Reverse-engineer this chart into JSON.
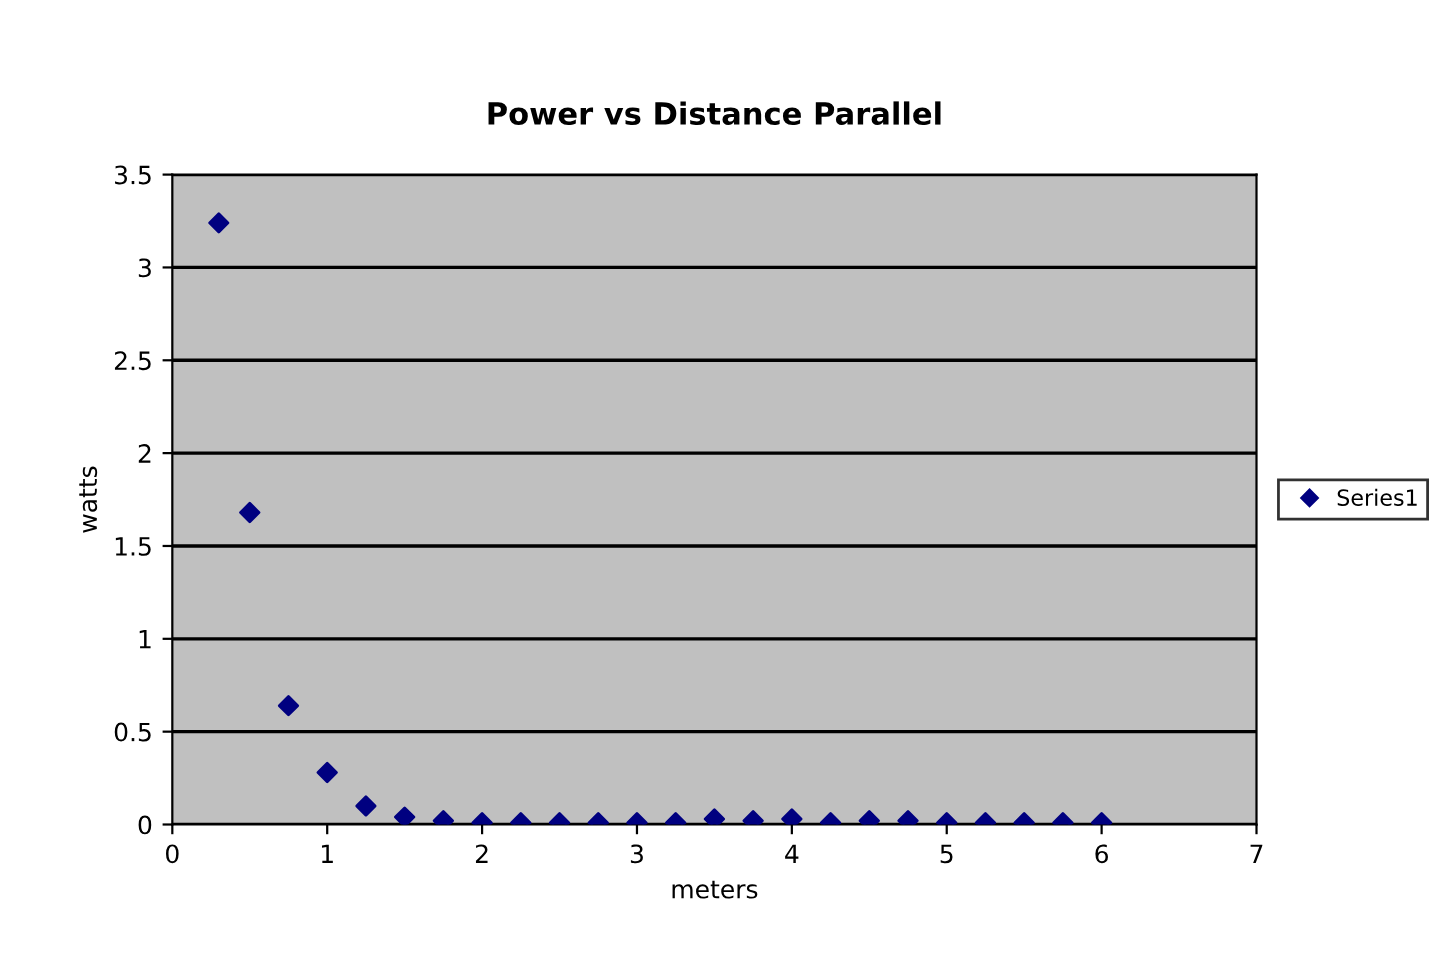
{
  "chart_data": {
    "type": "scatter",
    "title": "Power vs Distance Parallel",
    "xlabel": "meters",
    "ylabel": "watts",
    "x": [
      0.3,
      0.5,
      0.75,
      1,
      1.25,
      1.5,
      1.75,
      2,
      2.25,
      2.5,
      2.75,
      3,
      3.25,
      3.5,
      3.75,
      4,
      4.25,
      4.5,
      4.75,
      5,
      5.25,
      5.5,
      5.75,
      6
    ],
    "series": [
      {
        "name": "Series1",
        "color": "#000080",
        "values": [
          3.24,
          1.68,
          0.64,
          0.28,
          0.1,
          0.04,
          0.02,
          0.01,
          0.01,
          0.01,
          0.01,
          0.01,
          0.01,
          0.03,
          0.02,
          0.03,
          0.01,
          0.02,
          0.02,
          0.01,
          0.01,
          0.01,
          0.01,
          0.01
        ]
      }
    ],
    "xlim": [
      0,
      7
    ],
    "xticks": [
      0,
      1,
      2,
      3,
      4,
      5,
      6,
      7
    ],
    "ylim": [
      0,
      3.5
    ],
    "yticks": [
      0,
      0.5,
      1,
      1.5,
      2,
      2.5,
      3,
      3.5
    ],
    "grid": "y",
    "legend": "right",
    "marker": "diamond"
  }
}
